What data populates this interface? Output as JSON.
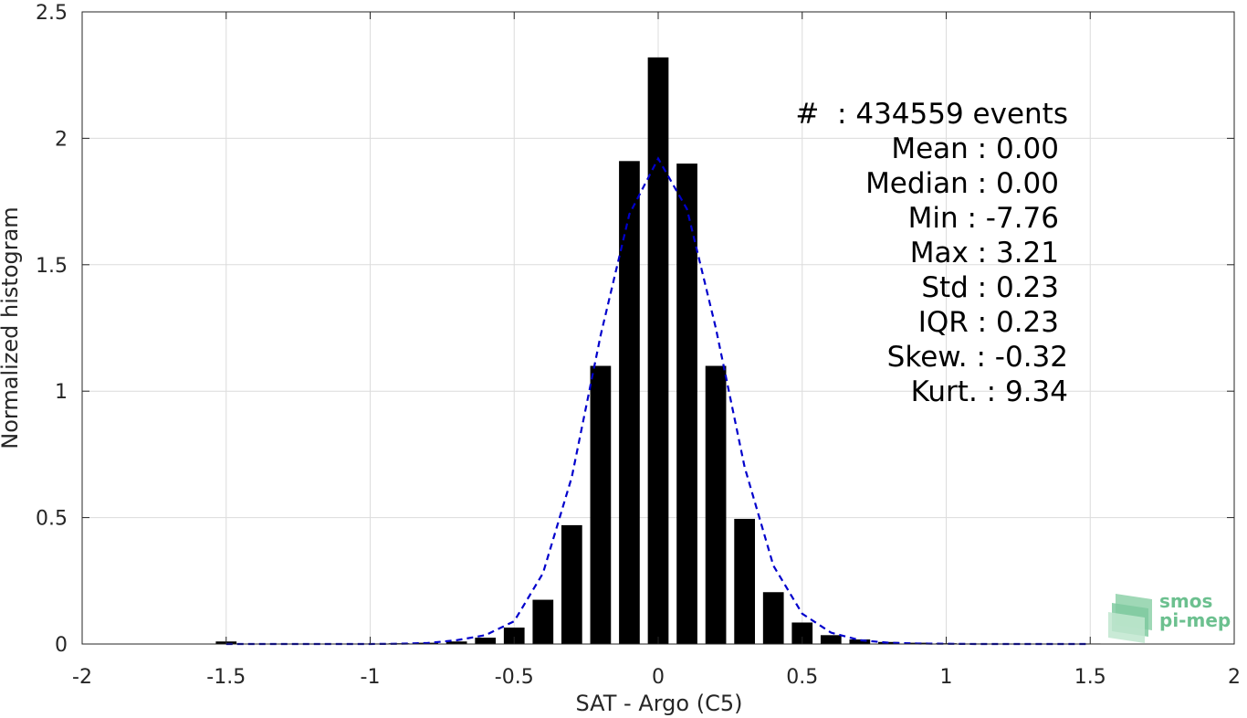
{
  "chart_data": {
    "type": "bar",
    "title": "",
    "xlabel": "SAT - Argo (C5)",
    "ylabel": "Normalized histogram",
    "xlim": [
      -2,
      2
    ],
    "ylim": [
      0,
      2.5
    ],
    "xticks": [
      -2,
      -1.5,
      -1,
      -0.5,
      0,
      0.5,
      1,
      1.5,
      2
    ],
    "xtick_labels": [
      "-2",
      "-1.5",
      "-1",
      "-0.5",
      "0",
      "0.5",
      "1",
      "1.5",
      "2"
    ],
    "yticks": [
      0,
      0.5,
      1,
      1.5,
      2,
      2.5
    ],
    "ytick_labels": [
      "0",
      "0.5",
      "1",
      "1.5",
      "2",
      "2.5"
    ],
    "grid": true,
    "bar_color": "#000000",
    "bars": {
      "x": [
        -1.5,
        -1.4,
        -1.3,
        -1.2,
        -1.1,
        -1.0,
        -0.9,
        -0.8,
        -0.7,
        -0.6,
        -0.5,
        -0.4,
        -0.3,
        -0.2,
        -0.1,
        0.0,
        0.1,
        0.2,
        0.3,
        0.4,
        0.5,
        0.6,
        0.7,
        0.8,
        0.9,
        1.0,
        1.1,
        1.2,
        1.3,
        1.4,
        1.5
      ],
      "values": [
        0.01,
        0.0,
        0.0,
        0.0,
        0.0,
        0.002,
        0.003,
        0.005,
        0.01,
        0.025,
        0.065,
        0.175,
        0.47,
        1.1,
        1.91,
        2.32,
        1.9,
        1.1,
        0.495,
        0.205,
        0.085,
        0.035,
        0.018,
        0.008,
        0.005,
        0.003,
        0.002,
        0.001,
        0.001,
        0.001,
        0.002
      ]
    },
    "fit_curve": {
      "style": "dashed",
      "color": "#0000cc",
      "x": [
        -1.5,
        -1.4,
        -1.3,
        -1.2,
        -1.1,
        -1.0,
        -0.9,
        -0.8,
        -0.7,
        -0.6,
        -0.5,
        -0.4,
        -0.3,
        -0.2,
        -0.1,
        0.0,
        0.1,
        0.2,
        0.3,
        0.4,
        0.5,
        0.6,
        0.7,
        0.8,
        0.9,
        1.0,
        1.1,
        1.2,
        1.3,
        1.4,
        1.5
      ],
      "y": [
        0.0,
        0.0,
        0.0,
        0.0,
        0.0,
        0.0,
        0.001,
        0.004,
        0.015,
        0.035,
        0.09,
        0.28,
        0.66,
        1.22,
        1.7,
        1.92,
        1.72,
        1.25,
        0.7,
        0.31,
        0.12,
        0.045,
        0.015,
        0.005,
        0.002,
        0.001,
        0.0,
        0.0,
        0.0,
        0.0,
        0.0
      ]
    },
    "annotations": [
      "#  : 434559 events",
      "Mean : 0.00",
      "Median : 0.00",
      "Min : -7.76",
      "Max : 3.21",
      "Std : 0.23",
      "IQR : 0.23",
      "Skew. : -0.32",
      "Kurt. : 9.34"
    ]
  },
  "logo": {
    "line1": "smos",
    "line2": "pi-mep"
  }
}
